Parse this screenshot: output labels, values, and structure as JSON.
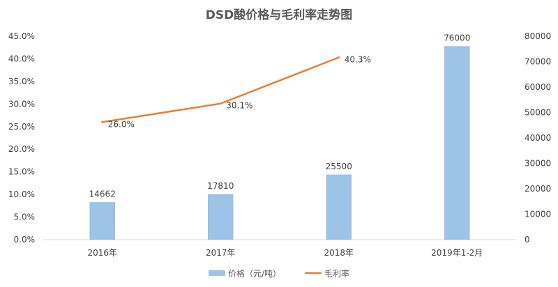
{
  "chart_data": {
    "type": "bar+line",
    "title": "DSD酸价格与毛利率走势图",
    "categories": [
      "2016年",
      "2017年",
      "2018年",
      "2019年1-2月"
    ],
    "series": [
      {
        "name": "价格（元/吨）",
        "type": "bar",
        "axis": "right",
        "color": "#9dc3e6",
        "values": [
          14662,
          17810,
          25500,
          76000
        ],
        "labels": [
          "14662",
          "17810",
          "25500",
          "76000"
        ]
      },
      {
        "name": "毛利率",
        "type": "line",
        "axis": "left",
        "color": "#ed7d31",
        "values": [
          26.0,
          30.1,
          40.3,
          null
        ],
        "labels": [
          "26.0%",
          "30.1%",
          "40.3%",
          ""
        ]
      }
    ],
    "left_axis": {
      "range": [
        0,
        45
      ],
      "ticks": [
        "0.0%",
        "5.0%",
        "10.0%",
        "15.0%",
        "20.0%",
        "25.0%",
        "30.0%",
        "35.0%",
        "40.0%",
        "45.0%"
      ]
    },
    "right_axis": {
      "range": [
        0,
        80000
      ],
      "ticks": [
        "0",
        "10000",
        "20000",
        "30000",
        "40000",
        "50000",
        "60000",
        "70000",
        "80000"
      ]
    },
    "grid": false,
    "legend": "bottom"
  }
}
